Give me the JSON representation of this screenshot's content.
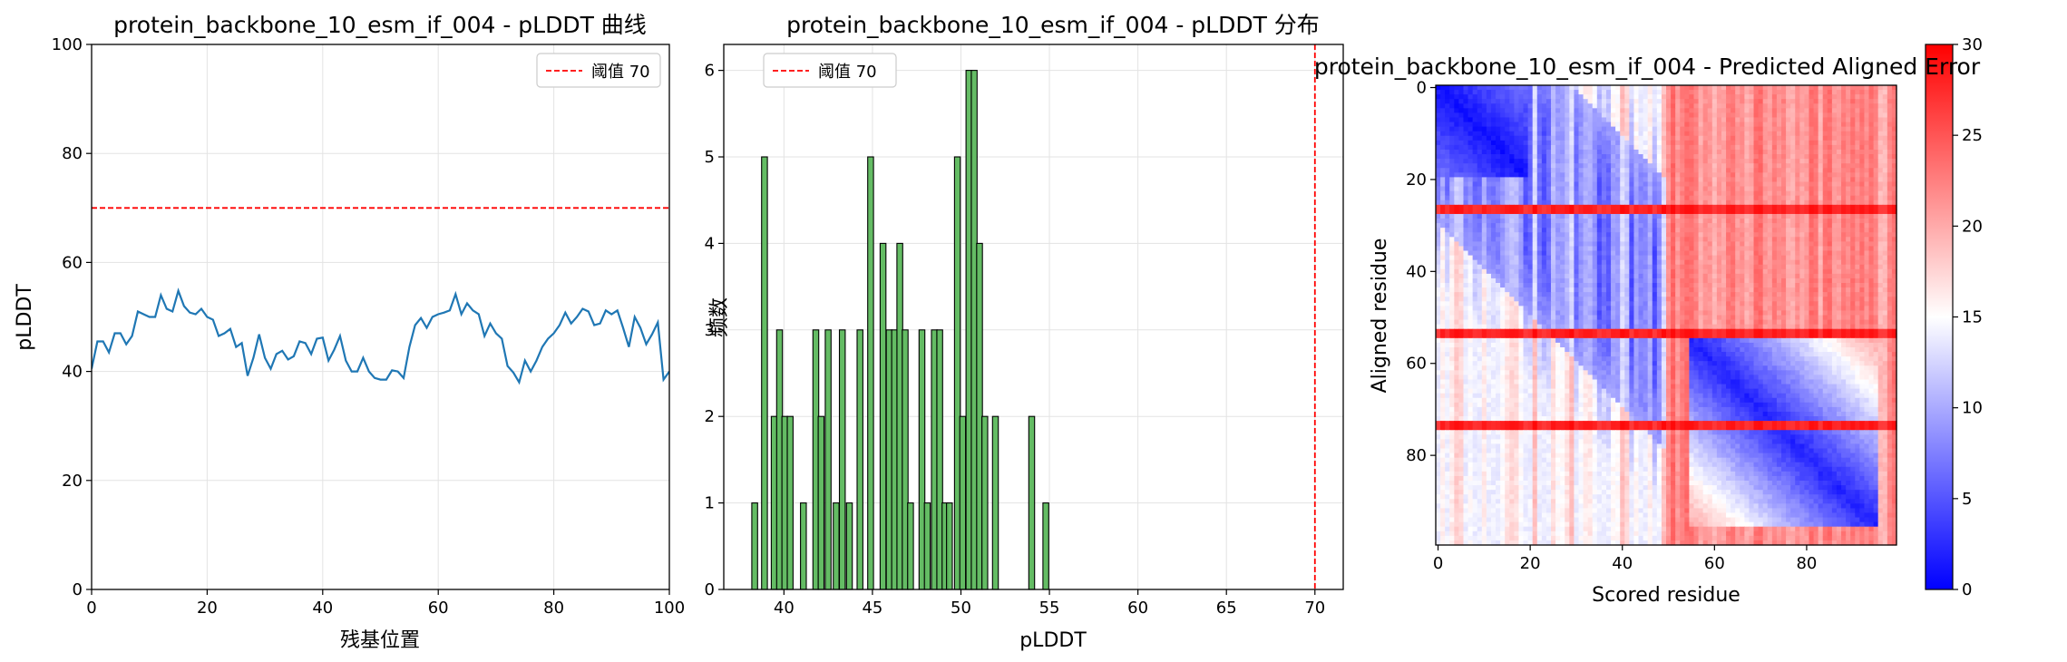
{
  "chart_data": [
    {
      "type": "line",
      "title": "protein_backbone_10_esm_if_004 - pLDDT 曲线",
      "xlabel": "残基位置",
      "ylabel": "pLDDT",
      "xlim": [
        0,
        100
      ],
      "ylim": [
        0,
        100
      ],
      "xticks": [
        0,
        20,
        40,
        60,
        80,
        100
      ],
      "yticks": [
        0,
        20,
        40,
        60,
        80,
        100
      ],
      "grid": true,
      "legend": {
        "position": "top-right",
        "entries": [
          "阈值 70"
        ]
      },
      "threshold": {
        "value": 70,
        "label": "阈值 70",
        "color": "#ff0000",
        "style": "dashed"
      },
      "series": [
        {
          "color": "#1f77b4",
          "x": [
            0,
            1,
            2,
            3,
            4,
            5,
            6,
            7,
            8,
            9,
            10,
            11,
            12,
            13,
            14,
            15,
            16,
            17,
            18,
            19,
            20,
            21,
            22,
            23,
            24,
            25,
            26,
            27,
            28,
            29,
            30,
            31,
            32,
            33,
            34,
            35,
            36,
            37,
            38,
            39,
            40,
            41,
            42,
            43,
            44,
            45,
            46,
            47,
            48,
            49,
            50,
            51,
            52,
            53,
            54,
            55,
            56,
            57,
            58,
            59,
            60,
            61,
            62,
            63,
            64,
            65,
            66,
            67,
            68,
            69,
            70,
            71,
            72,
            73,
            74,
            75,
            76,
            77,
            78,
            79,
            80,
            81,
            82,
            83,
            84,
            85,
            86,
            87,
            88,
            89,
            90,
            91,
            92,
            93,
            94,
            95,
            96,
            97,
            98,
            99,
            100
          ],
          "y": [
            40.5,
            45.5,
            45.5,
            43.5,
            47,
            47,
            45,
            46.5,
            51,
            50.5,
            50,
            50,
            54,
            51.5,
            51,
            54.8,
            52,
            50.8,
            50.5,
            51.5,
            50,
            49.5,
            46.5,
            47,
            47.8,
            44.5,
            45.2,
            39.2,
            42.5,
            46.8,
            42.5,
            40.5,
            43.2,
            43.8,
            42.2,
            42.8,
            45.5,
            45.2,
            43.2,
            46,
            46.2,
            42,
            44,
            46.5,
            42,
            40,
            40,
            42.5,
            40,
            38.8,
            38.5,
            38.5,
            40.2,
            40,
            38.8,
            44.5,
            48.5,
            49.8,
            48,
            50,
            50.5,
            50.8,
            51.2,
            54.2,
            50.5,
            52.5,
            51.2,
            50.5,
            46.5,
            48.8,
            47,
            46,
            41,
            39.8,
            38,
            42,
            40,
            42,
            44.5,
            46,
            47,
            48.5,
            50.8,
            48.8,
            50,
            51.5,
            51,
            48.5,
            48.8,
            51.2,
            50.5,
            51.2,
            48,
            44.5,
            50,
            48,
            45,
            46.8,
            49,
            38.5,
            40
          ]
        }
      ]
    },
    {
      "type": "bar",
      "title": "protein_backbone_10_esm_if_004 - pLDDT 分布",
      "xlabel": "pLDDT",
      "ylabel": "频数",
      "xlim": [
        36.6,
        71.6
      ],
      "ylim": [
        0,
        6.3
      ],
      "xticks": [
        40,
        45,
        50,
        55,
        60,
        65,
        70
      ],
      "yticks": [
        0,
        1,
        2,
        3,
        4,
        5,
        6
      ],
      "grid": true,
      "legend": {
        "position": "top-left",
        "entries": [
          "阈值 70"
        ]
      },
      "threshold": {
        "value": 70,
        "label": "阈值 70",
        "color": "#ff0000",
        "style": "dashed"
      },
      "bar_color": "#5cb85c",
      "bin_width": 0.33,
      "bins": [
        {
          "x": 38.35,
          "count": 1
        },
        {
          "x": 38.9,
          "count": 5
        },
        {
          "x": 39.45,
          "count": 2
        },
        {
          "x": 39.75,
          "count": 3
        },
        {
          "x": 40.05,
          "count": 2
        },
        {
          "x": 40.35,
          "count": 2
        },
        {
          "x": 41.1,
          "count": 1
        },
        {
          "x": 41.8,
          "count": 3
        },
        {
          "x": 42.1,
          "count": 2
        },
        {
          "x": 42.5,
          "count": 3
        },
        {
          "x": 42.95,
          "count": 1
        },
        {
          "x": 43.3,
          "count": 3
        },
        {
          "x": 43.7,
          "count": 1
        },
        {
          "x": 44.3,
          "count": 3
        },
        {
          "x": 44.9,
          "count": 5
        },
        {
          "x": 45.6,
          "count": 4
        },
        {
          "x": 45.95,
          "count": 3
        },
        {
          "x": 46.25,
          "count": 3
        },
        {
          "x": 46.55,
          "count": 4
        },
        {
          "x": 46.85,
          "count": 3
        },
        {
          "x": 47.15,
          "count": 1
        },
        {
          "x": 47.8,
          "count": 3
        },
        {
          "x": 48.1,
          "count": 1
        },
        {
          "x": 48.5,
          "count": 3
        },
        {
          "x": 48.8,
          "count": 3
        },
        {
          "x": 49.1,
          "count": 1
        },
        {
          "x": 49.35,
          "count": 1
        },
        {
          "x": 49.8,
          "count": 5
        },
        {
          "x": 50.1,
          "count": 2
        },
        {
          "x": 50.45,
          "count": 6
        },
        {
          "x": 50.75,
          "count": 6
        },
        {
          "x": 51.05,
          "count": 4
        },
        {
          "x": 51.35,
          "count": 2
        },
        {
          "x": 51.95,
          "count": 2
        },
        {
          "x": 54,
          "count": 2
        },
        {
          "x": 54.8,
          "count": 1
        }
      ]
    },
    {
      "type": "heatmap",
      "title": "protein_backbone_10_esm_if_004 - Predicted Aligned Error",
      "xlabel": "Scored residue",
      "ylabel": "Aligned residue",
      "xlim": [
        0,
        100
      ],
      "ylim": [
        0,
        100
      ],
      "xticks": [
        0,
        20,
        40,
        60,
        80
      ],
      "yticks": [
        0,
        20,
        40,
        60,
        80
      ],
      "colormap": "bwr",
      "colorbar": {
        "min": 0,
        "max": 30,
        "ticks": [
          0,
          5,
          10,
          15,
          20,
          25,
          30
        ]
      },
      "description_values": {
        "diagonal": 0,
        "flexible_rows": [
          26,
          27,
          53,
          54,
          73,
          74
        ],
        "flexible_row_error": 28,
        "right_region_error": 22
      }
    }
  ]
}
